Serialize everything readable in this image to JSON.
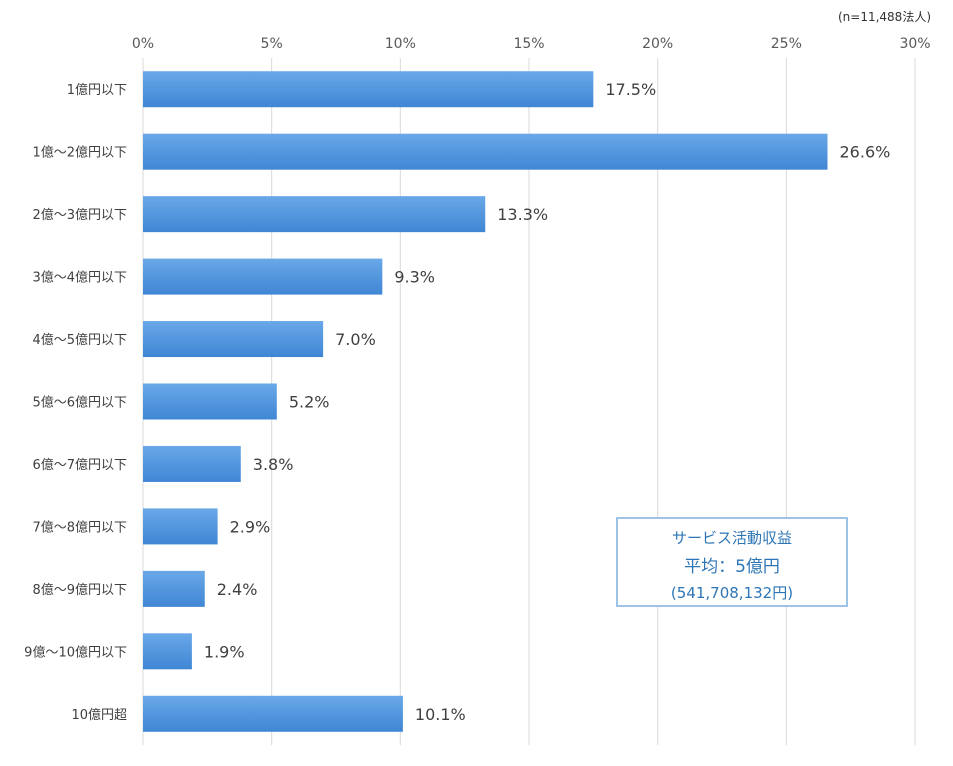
{
  "note": "(n=11,488法人)",
  "summary": {
    "title": "サービス活動収益",
    "average": "平均：5億円",
    "exact": "(541,708,132円)"
  },
  "colors": {
    "bar": "#4a8fd9",
    "bar_top": "#6aa8e8",
    "grid": "#d9d9d9",
    "summary_text": "#2e75b6"
  },
  "chart_data": {
    "type": "bar",
    "orientation": "horizontal",
    "categories": [
      "1億円以下",
      "1億～2億円以下",
      "2億～3億円以下",
      "3億～4億円以下",
      "4億～5億円以下",
      "5億～6億円以下",
      "6億～7億円以下",
      "7億～8億円以下",
      "8億～9億円以下",
      "9億～10億円以下",
      "10億円超"
    ],
    "values": [
      17.5,
      26.6,
      13.3,
      9.3,
      7.0,
      5.2,
      3.8,
      2.9,
      2.4,
      1.9,
      10.1
    ],
    "value_labels": [
      "17.5%",
      "26.6%",
      "13.3%",
      "9.3%",
      "7.0%",
      "5.2%",
      "3.8%",
      "2.9%",
      "2.4%",
      "1.9%",
      "10.1%"
    ],
    "xlim": [
      0,
      30
    ],
    "x_ticks": [
      "0%",
      "5%",
      "10%",
      "15%",
      "20%",
      "25%",
      "30%"
    ],
    "axis_position": "top",
    "grid": true
  }
}
